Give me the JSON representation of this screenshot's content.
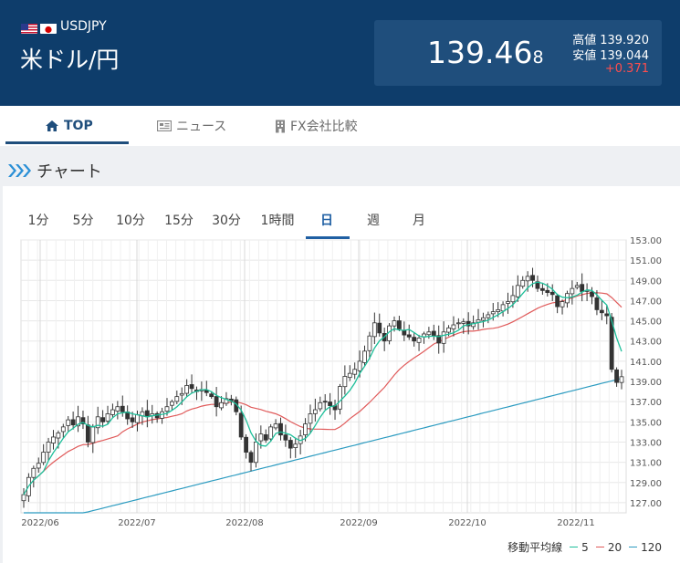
{
  "header": {
    "pair_code": "USDJPY",
    "pair_name": "米ドル/円",
    "price_main": "139.46",
    "price_last_digit": "8",
    "high_label": "高値",
    "high_value": "139.920",
    "low_label": "安値",
    "low_value": "139.044",
    "change": "+0.371"
  },
  "nav": {
    "tabs": [
      {
        "label": "TOP",
        "icon": "home-icon",
        "active": true
      },
      {
        "label": "ニュース",
        "icon": "newspaper-icon",
        "active": false
      },
      {
        "label": "FX会社比較",
        "icon": "building-icon",
        "active": false
      }
    ]
  },
  "section": {
    "title": "チャート"
  },
  "chart": {
    "periods": [
      "1分",
      "5分",
      "10分",
      "15分",
      "30分",
      "1時間",
      "日",
      "週",
      "月"
    ],
    "active_period": "日",
    "legend_title": "移動平均線",
    "ma_labels": [
      "5",
      "20",
      "120"
    ],
    "colors": {
      "ma5": "#1dbf9a",
      "ma20": "#e05a5a",
      "ma120": "#2b9bc0",
      "up": "#ffffff",
      "down": "#333333"
    }
  },
  "chart_data": {
    "type": "candlestick",
    "y_ticks": [
      "153.00",
      "151.00",
      "149.00",
      "147.00",
      "145.00",
      "143.00",
      "141.00",
      "139.00",
      "137.00",
      "135.00",
      "133.00",
      "131.00",
      "129.00",
      "127.00"
    ],
    "ylim": [
      126,
      153
    ],
    "x_ticks": [
      "2022/06",
      "2022/07",
      "2022/08",
      "2022/09",
      "2022/10",
      "2022/11"
    ],
    "grid": true,
    "closes": [
      127.8,
      129.5,
      130.4,
      130.9,
      132.0,
      133.0,
      133.5,
      133.9,
      134.5,
      135.2,
      134.7,
      135.5,
      134.8,
      133.0,
      134.5,
      135.5,
      135.0,
      135.8,
      136.2,
      136.5,
      136.0,
      135.3,
      135.0,
      135.7,
      136.0,
      135.5,
      135.8,
      135.4,
      136.0,
      136.5,
      137.0,
      137.5,
      137.8,
      138.6,
      138.3,
      138.0,
      138.2,
      137.9,
      137.5,
      136.5,
      136.9,
      137.3,
      137.1,
      136.0,
      133.5,
      132.0,
      131.0,
      133.0,
      133.8,
      133.2,
      134.5,
      134.8,
      133.7,
      133.2,
      132.4,
      132.8,
      133.6,
      134.8,
      135.8,
      136.2,
      136.9,
      137.0,
      136.6,
      136.2,
      138.5,
      139.5,
      139.8,
      140.2,
      141.0,
      142.0,
      143.5,
      144.8,
      143.8,
      143.0,
      144.5,
      145.0,
      144.2,
      143.6,
      143.4,
      143.0,
      143.3,
      143.7,
      143.9,
      143.5,
      142.8,
      143.9,
      144.3,
      144.6,
      144.8,
      144.9,
      144.5,
      144.8,
      145.1,
      145.3,
      145.6,
      145.9,
      146.1,
      146.6,
      146.9,
      147.5,
      148.5,
      149.0,
      149.4,
      149.0,
      148.2,
      148.0,
      147.8,
      147.6,
      146.4,
      146.9,
      147.7,
      148.2,
      148.5,
      147.9,
      148.0,
      147.4,
      146.1,
      145.8,
      145.5,
      140.2,
      138.9,
      139.47
    ],
    "ma120_range": [
      124.5,
      139.3
    ]
  }
}
